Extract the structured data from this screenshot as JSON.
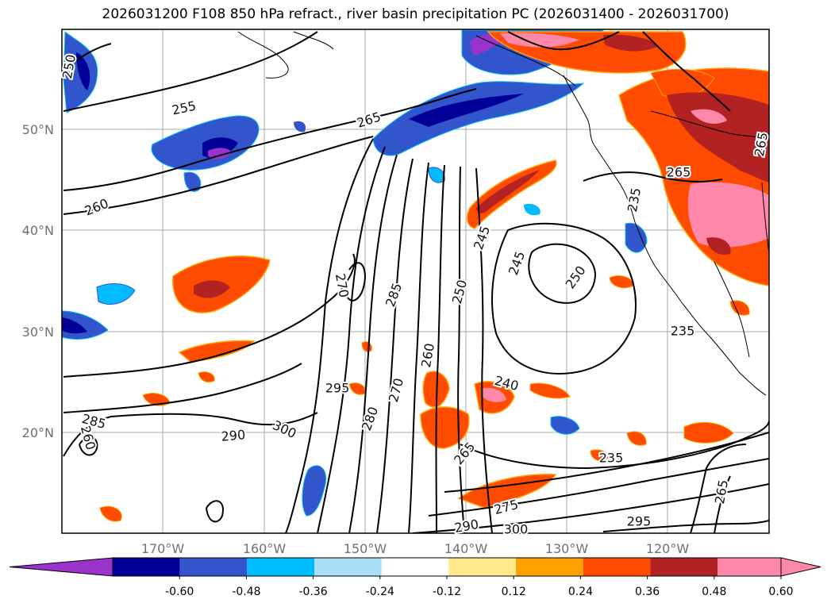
{
  "title": "2026031200 F108 850 hPa refract., river basin precipitation PC (2026031400 - 2026031700)",
  "map": {
    "lat_labels": [
      "50°N",
      "40°N",
      "30°N",
      "20°N"
    ],
    "lon_labels": [
      "170°W",
      "160°W",
      "150°W",
      "140°W",
      "130°W",
      "120°W"
    ],
    "contour_labels": [
      {
        "text": "250"
      },
      {
        "text": "255"
      },
      {
        "text": "260"
      },
      {
        "text": "265"
      },
      {
        "text": "265"
      },
      {
        "text": "270"
      },
      {
        "text": "285"
      },
      {
        "text": "245"
      },
      {
        "text": "250"
      },
      {
        "text": "245"
      },
      {
        "text": "250"
      },
      {
        "text": "235"
      },
      {
        "text": "240"
      },
      {
        "text": "265"
      },
      {
        "text": "260"
      },
      {
        "text": "270"
      },
      {
        "text": "280"
      },
      {
        "text": "295"
      },
      {
        "text": "300"
      },
      {
        "text": "290"
      },
      {
        "text": "285"
      },
      {
        "text": "260"
      },
      {
        "text": "235"
      },
      {
        "text": "275"
      },
      {
        "text": "290"
      },
      {
        "text": "300"
      },
      {
        "text": "295"
      },
      {
        "text": "265"
      },
      {
        "text": "265"
      },
      {
        "text": "235"
      }
    ]
  },
  "colorbar": {
    "colors": [
      "#9933cc",
      "#000099",
      "#3355cc",
      "#00bbff",
      "#aaddf7",
      "#ffffff",
      "#ffe98a",
      "#ffa200",
      "#ff4b00",
      "#b22222",
      "#ff88aa",
      "#ff88aa"
    ],
    "tick_labels": [
      "-0.60",
      "-0.48",
      "-0.36",
      "-0.24",
      "-0.12",
      "0.12",
      "0.24",
      "0.36",
      "0.48",
      "0.60"
    ]
  }
}
